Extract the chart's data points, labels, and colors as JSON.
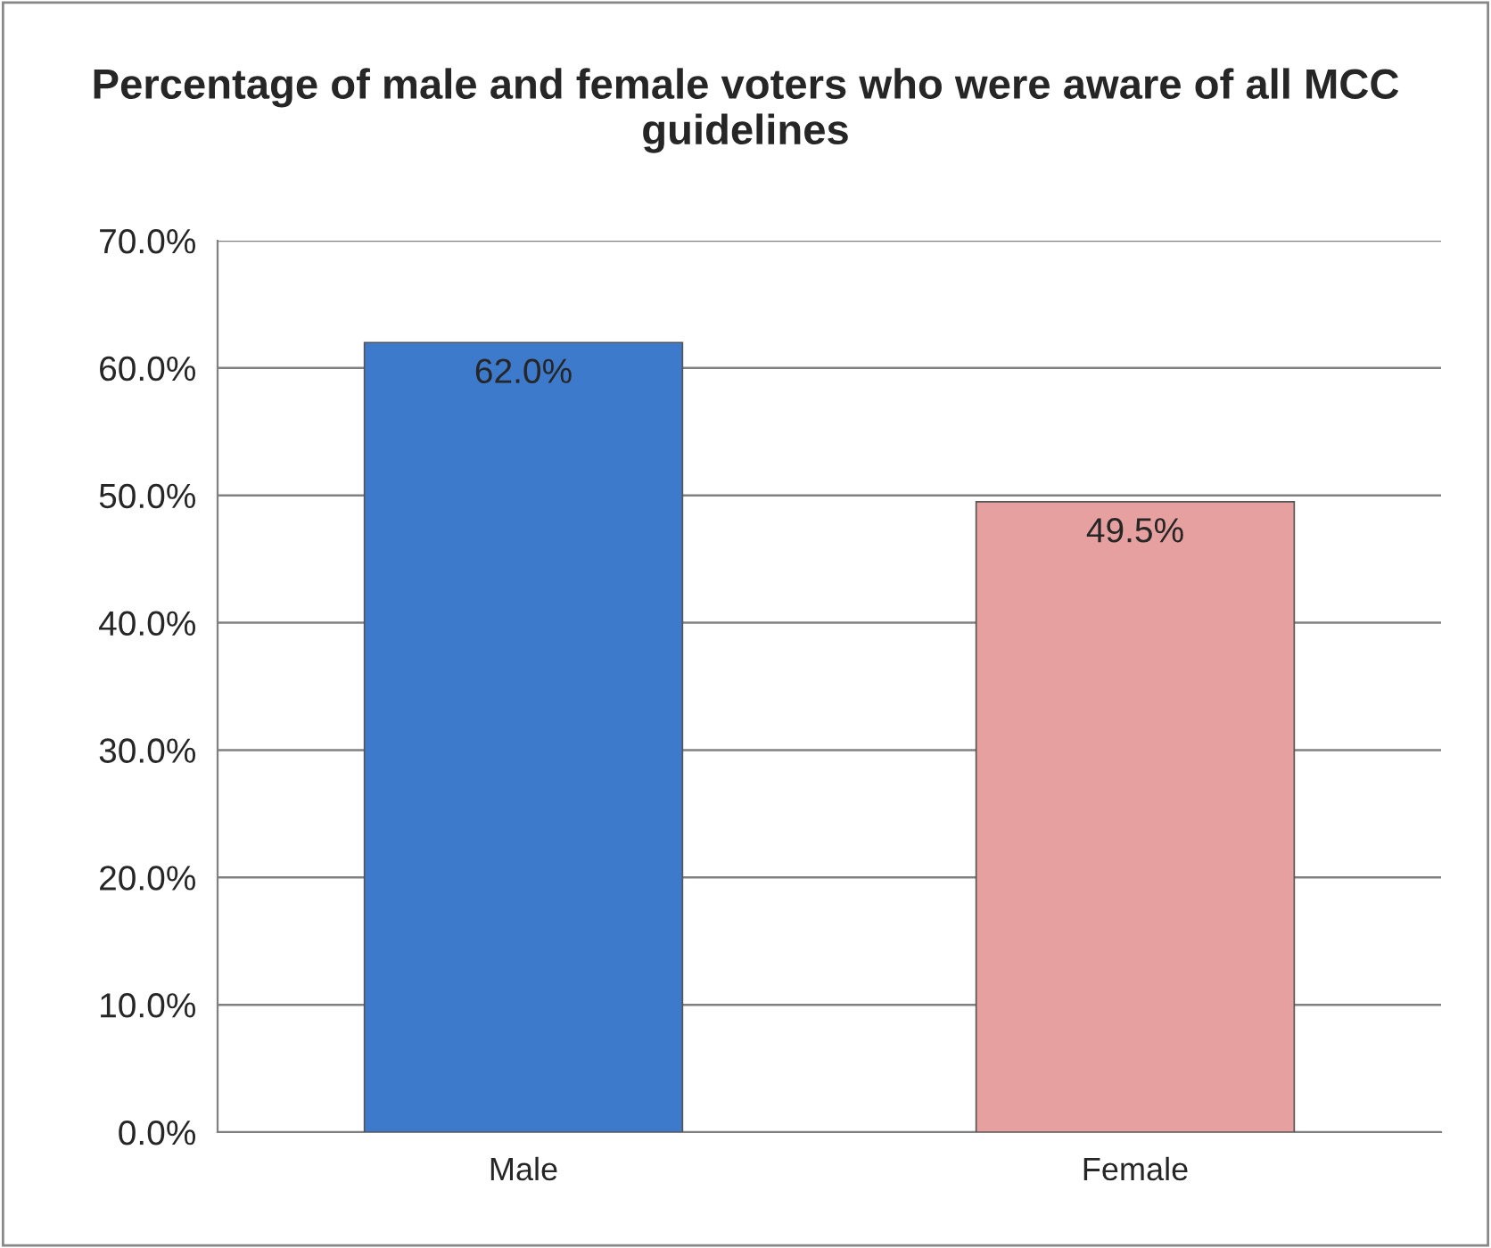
{
  "chart_data": {
    "type": "bar",
    "title": "Percentage of male and female voters who were aware of all MCC guidelines",
    "categories": [
      "Male",
      "Female"
    ],
    "values": [
      62.0,
      49.5
    ],
    "colors": [
      "#3d7acb",
      "#e5a09f"
    ],
    "value_labels": [
      "62.0%",
      "49.5%"
    ],
    "ylim": [
      0,
      70
    ],
    "yticks": [
      {
        "value": 0,
        "label": "0.0%"
      },
      {
        "value": 10,
        "label": "10.0%"
      },
      {
        "value": 20,
        "label": "20.0%"
      },
      {
        "value": 30,
        "label": "30.0%"
      },
      {
        "value": 40,
        "label": "40.0%"
      },
      {
        "value": 50,
        "label": "50.0%"
      },
      {
        "value": 60,
        "label": "60.0%"
      },
      {
        "value": 70,
        "label": "70.0%"
      }
    ],
    "grid": "y"
  }
}
